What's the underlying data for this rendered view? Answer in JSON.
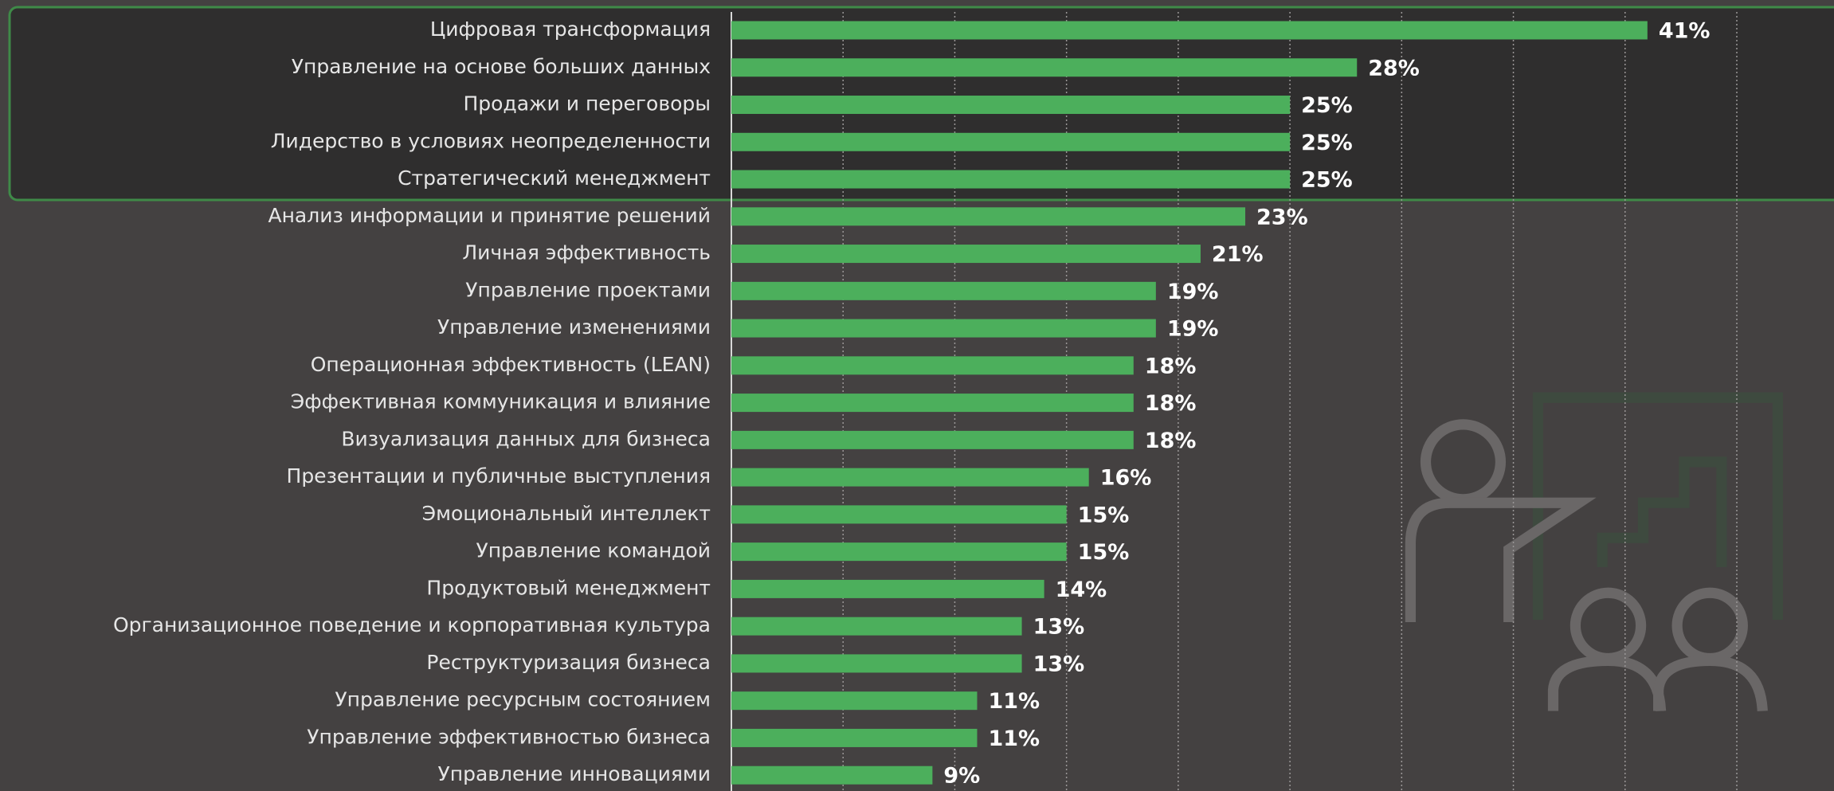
{
  "chart_data": {
    "type": "bar",
    "orientation": "horizontal",
    "categories": [
      "Цифровая трансформация",
      "Управление на основе больших данных",
      "Продажи и переговоры",
      "Лидерство в условиях неопределенности",
      "Стратегический менеджмент",
      "Анализ информации и принятие решений",
      "Личная эффективность",
      "Управление проектами",
      "Управление изменениями",
      "Операционная эффективность (LEAN)",
      "Эффективная коммуникация и влияние",
      "Визуализация данных для бизнеса",
      "Презентации и публичные выступления",
      "Эмоциональный интеллект",
      "Управление командой",
      "Продуктовый менеджмент",
      "Организационное поведение и корпоративная культура",
      "Реструктуризация бизнеса",
      "Управление ресурсным состоянием",
      "Управление эффективностью бизнеса",
      "Управление инновациями"
    ],
    "values": [
      41,
      28,
      25,
      25,
      25,
      23,
      21,
      19,
      19,
      18,
      18,
      18,
      16,
      15,
      15,
      14,
      13,
      13,
      11,
      11,
      9
    ],
    "value_labels": [
      "41%",
      "28%",
      "25%",
      "25%",
      "25%",
      "23%",
      "21%",
      "19%",
      "19%",
      "18%",
      "18%",
      "18%",
      "16%",
      "15%",
      "15%",
      "14%",
      "13%",
      "13%",
      "11%",
      "11%",
      "9%"
    ],
    "color": "#4caf5c",
    "xlim": [
      0,
      45
    ],
    "xticks": [
      5,
      10,
      15,
      20,
      25,
      30,
      35,
      40,
      45
    ],
    "grid": true
  }
}
